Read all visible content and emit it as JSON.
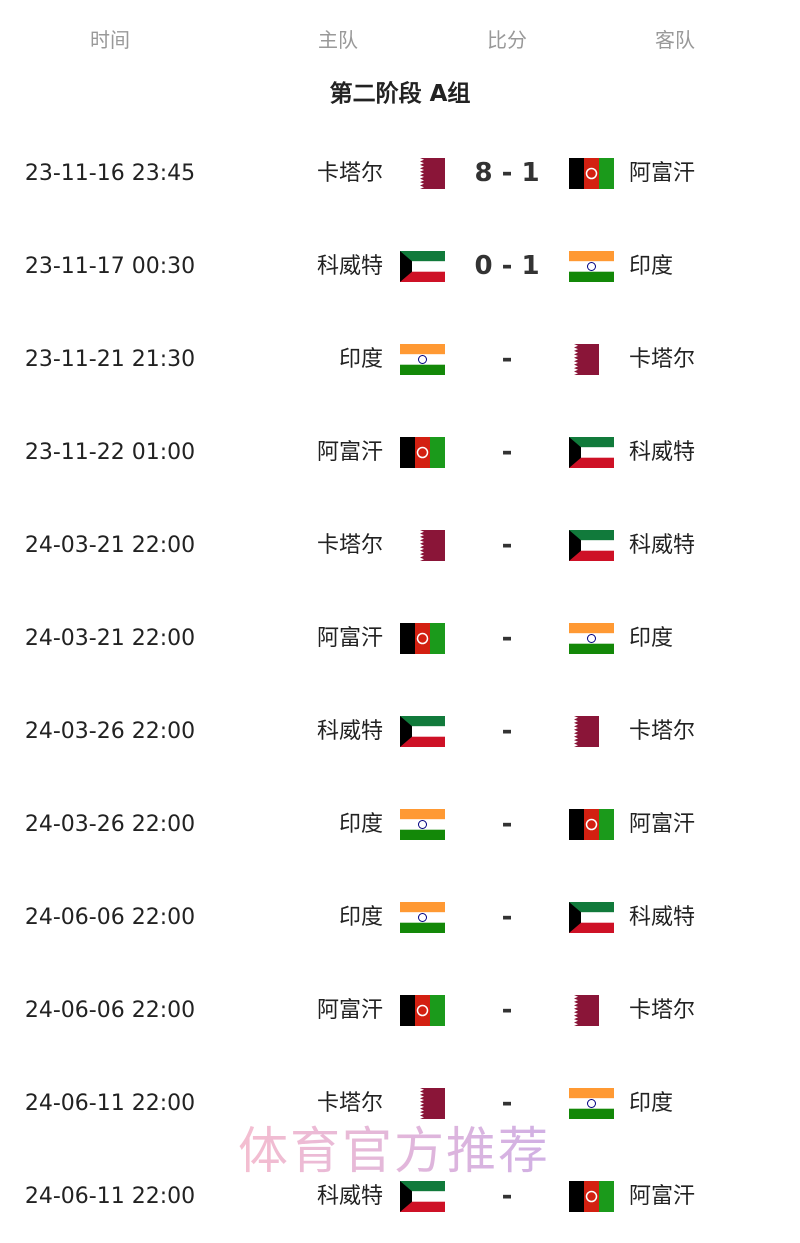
{
  "header": {
    "time": "时间",
    "home": "主队",
    "score": "比分",
    "away": "客队"
  },
  "group_title": "第二阶段 A组",
  "flag_colors": {
    "qatar": "#8a1538",
    "afghanistan": [
      "#000000",
      "#d32011",
      "#1b9a1b"
    ],
    "kuwait": [
      "#117a3b",
      "#ffffff",
      "#ce1126",
      "#000000"
    ],
    "india": [
      "#ff9933",
      "#ffffff",
      "#138808",
      "#000080"
    ]
  },
  "matches": [
    {
      "time": "23-11-16 23:45",
      "home": "卡塔尔",
      "home_flag": "qatar",
      "score": "8 - 1",
      "away": "阿富汗",
      "away_flag": "afghanistan"
    },
    {
      "time": "23-11-17 00:30",
      "home": "科威特",
      "home_flag": "kuwait",
      "score": "0 - 1",
      "away": "印度",
      "away_flag": "india"
    },
    {
      "time": "23-11-21 21:30",
      "home": "印度",
      "home_flag": "india",
      "score": "-",
      "away": "卡塔尔",
      "away_flag": "qatar"
    },
    {
      "time": "23-11-22 01:00",
      "home": "阿富汗",
      "home_flag": "afghanistan",
      "score": "-",
      "away": "科威特",
      "away_flag": "kuwait"
    },
    {
      "time": "24-03-21 22:00",
      "home": "卡塔尔",
      "home_flag": "qatar",
      "score": "-",
      "away": "科威特",
      "away_flag": "kuwait"
    },
    {
      "time": "24-03-21 22:00",
      "home": "阿富汗",
      "home_flag": "afghanistan",
      "score": "-",
      "away": "印度",
      "away_flag": "india"
    },
    {
      "time": "24-03-26 22:00",
      "home": "科威特",
      "home_flag": "kuwait",
      "score": "-",
      "away": "卡塔尔",
      "away_flag": "qatar"
    },
    {
      "time": "24-03-26 22:00",
      "home": "印度",
      "home_flag": "india",
      "score": "-",
      "away": "阿富汗",
      "away_flag": "afghanistan"
    },
    {
      "time": "24-06-06 22:00",
      "home": "印度",
      "home_flag": "india",
      "score": "-",
      "away": "科威特",
      "away_flag": "kuwait"
    },
    {
      "time": "24-06-06 22:00",
      "home": "阿富汗",
      "home_flag": "afghanistan",
      "score": "-",
      "away": "卡塔尔",
      "away_flag": "qatar"
    },
    {
      "time": "24-06-11 22:00",
      "home": "卡塔尔",
      "home_flag": "qatar",
      "score": "-",
      "away": "印度",
      "away_flag": "india"
    },
    {
      "time": "24-06-11 22:00",
      "home": "科威特",
      "home_flag": "kuwait",
      "score": "-",
      "away": "阿富汗",
      "away_flag": "afghanistan"
    }
  ],
  "watermark": "体育官方推荐"
}
